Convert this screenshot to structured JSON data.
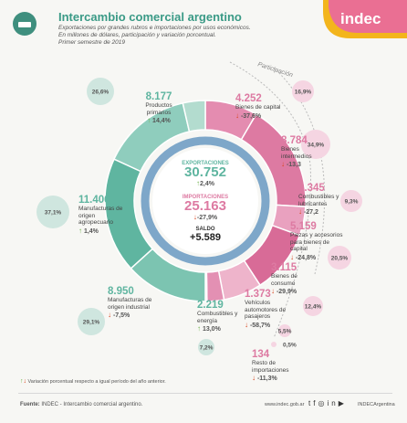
{
  "header": {
    "title": "Intercambio comercial argentino",
    "subtitle_1": "Exportaciones por grandes rubros e importaciones por usos económicos.",
    "subtitle_2": "En millones de dólares, participación y variación porcentual.",
    "subtitle_3": "Primer semestre de 2019",
    "logo": "indec"
  },
  "participation_label": "Participación",
  "center": {
    "exports_label": "EXPORTACIONES",
    "exports_value": "30.752",
    "exports_change": "2,4%",
    "imports_label": "IMPORTACIONES",
    "imports_value": "25.163",
    "imports_change": "-27,9%",
    "balance_label": "SALDO",
    "balance_value": "+5.589"
  },
  "chart_data": [
    {
      "type": "pie",
      "title": "EXPORTACIONES",
      "categories": [
        "Productos primarios",
        "Manufacturas de origen agropecuario",
        "Manufacturas de origen industrial",
        "Combustibles y energía"
      ],
      "values": [
        8177,
        11406,
        8950,
        2219
      ],
      "share": [
        "26,6%",
        "37,1%",
        "29,1%",
        "7,2%"
      ],
      "change": [
        "14,4%",
        "1,4%",
        "-7,5%",
        "13,0%"
      ],
      "total": 30752
    },
    {
      "type": "pie",
      "title": "IMPORTACIONES",
      "categories": [
        "Bienes de capital",
        "Bienes intermedios",
        "Combustibles y lubricantes",
        "Piezas y accesorios para bienes de capital",
        "Bienes de consumo",
        "Vehículos automotores de pasajeros",
        "Resto de importaciones"
      ],
      "values": [
        4252,
        8784,
        2345,
        5159,
        3115,
        1373,
        134
      ],
      "share": [
        "16,9%",
        "34,9%",
        "9,3%",
        "20,5%",
        "12,4%",
        "5,5%",
        "0,5%"
      ],
      "change": [
        "-37,6%",
        "-13,3",
        "-27,2",
        "-24,8%",
        "-29,9%",
        "-58,7%",
        "-11,3%"
      ],
      "total": 25163
    }
  ],
  "footnote": "Variación porcentual respecto a igual período del año anterior.",
  "source_label": "Fuente:",
  "source_text": "INDEC - Intercambio comercial argentino.",
  "website": "www.indec.gob.ar",
  "social_handle": "INDECArgentina",
  "colors": {
    "exports": "#5fb5a0",
    "imports": "#dd7aa2",
    "up": "#6fb24a",
    "down": "#d9441c"
  }
}
